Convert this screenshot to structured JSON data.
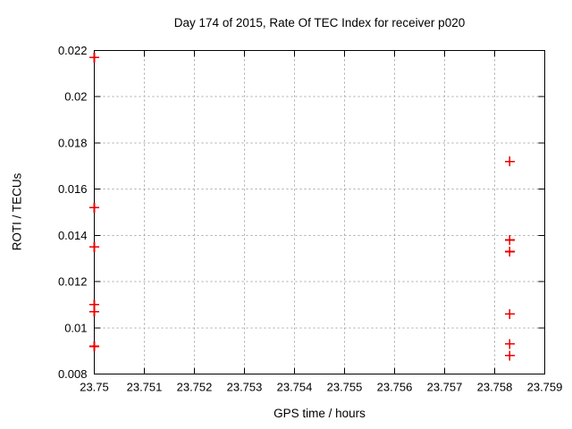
{
  "window": {
    "background": "#ffffff",
    "text_color": "#000000"
  },
  "chart_data": {
    "type": "scatter",
    "title": "Day 174 of 2015, Rate Of TEC Index for receiver p020",
    "xlabel": "GPS time / hours",
    "ylabel": "ROTI / TECUs",
    "xlim": [
      23.75,
      23.759
    ],
    "ylim": [
      0.008,
      0.022
    ],
    "grid": true,
    "grid_style": "dashed",
    "grid_color": "#a8a8a8",
    "axis_color": "#000000",
    "legend": "none",
    "xticks": [
      {
        "value": 23.75,
        "label": "23.75"
      },
      {
        "value": 23.751,
        "label": "23.751"
      },
      {
        "value": 23.752,
        "label": "23.752"
      },
      {
        "value": 23.753,
        "label": "23.753"
      },
      {
        "value": 23.754,
        "label": "23.754"
      },
      {
        "value": 23.755,
        "label": "23.755"
      },
      {
        "value": 23.756,
        "label": "23.756"
      },
      {
        "value": 23.757,
        "label": "23.757"
      },
      {
        "value": 23.758,
        "label": "23.758"
      },
      {
        "value": 23.759,
        "label": "23.759"
      }
    ],
    "yticks": [
      {
        "value": 0.008,
        "label": "0.008"
      },
      {
        "value": 0.01,
        "label": "0.01"
      },
      {
        "value": 0.012,
        "label": "0.012"
      },
      {
        "value": 0.014,
        "label": "0.014"
      },
      {
        "value": 0.016,
        "label": "0.016"
      },
      {
        "value": 0.018,
        "label": "0.018"
      },
      {
        "value": 0.02,
        "label": "0.02"
      },
      {
        "value": 0.022,
        "label": "0.022"
      }
    ],
    "series": [
      {
        "name": "ROTI",
        "marker": "plus",
        "color": "#ee0000",
        "points": [
          [
            23.75,
            0.0217
          ],
          [
            23.75,
            0.0152
          ],
          [
            23.75,
            0.0135
          ],
          [
            23.75,
            0.011
          ],
          [
            23.75,
            0.0107
          ],
          [
            23.75,
            0.0092
          ],
          [
            23.7583,
            0.0172
          ],
          [
            23.7583,
            0.0138
          ],
          [
            23.7583,
            0.0133
          ],
          [
            23.7583,
            0.0106
          ],
          [
            23.7583,
            0.0093
          ],
          [
            23.7583,
            0.0088
          ]
        ]
      }
    ]
  }
}
